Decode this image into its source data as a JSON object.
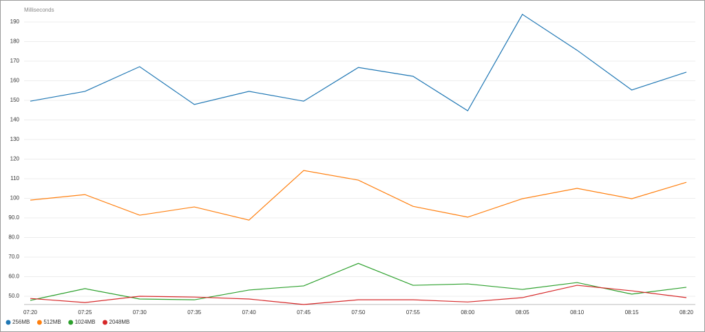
{
  "chart_data": {
    "type": "line",
    "y_label": "Milliseconds",
    "categories": [
      "07:20",
      "07:25",
      "07:30",
      "07:35",
      "07:40",
      "07:45",
      "07:50",
      "07:55",
      "08:00",
      "08:05",
      "08:10",
      "08:15",
      "08:20"
    ],
    "series": [
      {
        "name": "256MB",
        "color": "#1f77b4",
        "values": [
          149.6,
          154.6,
          167.2,
          147.9,
          154.6,
          149.6,
          166.8,
          162.3,
          144.7,
          193.9,
          175.6,
          155.3,
          164.4
        ]
      },
      {
        "name": "512MB",
        "color": "#ff7f0e",
        "values": [
          99.1,
          101.9,
          91.4,
          95.6,
          88.9,
          114.2,
          109.3,
          95.9,
          90.4,
          99.8,
          105.1,
          99.8,
          108.2
        ]
      },
      {
        "name": "1024MB",
        "color": "#2ca02c",
        "values": [
          47.9,
          53.9,
          48.6,
          48.2,
          53.2,
          55.3,
          66.8,
          55.6,
          56.3,
          53.5,
          57.0,
          51.1,
          54.6
        ]
      },
      {
        "name": "2048MB",
        "color": "#d62728",
        "values": [
          48.9,
          46.8,
          50.0,
          49.6,
          48.6,
          45.8,
          48.2,
          48.2,
          47.1,
          49.3,
          55.6,
          52.8,
          49.3
        ]
      }
    ],
    "ylim": [
      45.8,
      194.5
    ],
    "yticks": [
      {
        "value": 50,
        "label": "50.0"
      },
      {
        "value": 60,
        "label": "60.0"
      },
      {
        "value": 70,
        "label": "70.0"
      },
      {
        "value": 80,
        "label": "80.0"
      },
      {
        "value": 90,
        "label": "90.0"
      },
      100,
      110,
      120,
      130,
      140,
      150,
      160,
      170,
      180,
      190
    ],
    "grid": true
  }
}
